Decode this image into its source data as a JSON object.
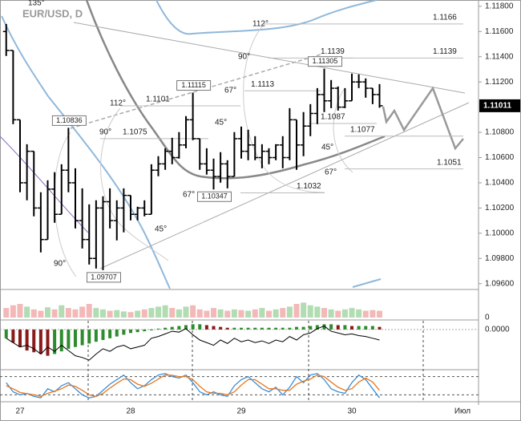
{
  "chart_data": [
    {
      "type": "ohlc",
      "title": "EUR/USD, D",
      "color": "#000000",
      "categories": [
        null,
        null,
        "27",
        null,
        null,
        null,
        null,
        null,
        null,
        null,
        null,
        null,
        null,
        null,
        null,
        null,
        null,
        null,
        "28",
        null,
        null,
        null,
        null,
        null,
        null,
        null,
        null,
        null,
        null,
        null,
        null,
        null,
        null,
        null,
        "29",
        null,
        null,
        null,
        null,
        null,
        null,
        null,
        null,
        null,
        null,
        null,
        null,
        null,
        null,
        null,
        "30",
        null,
        null,
        null,
        null,
        null,
        null,
        null,
        null,
        null,
        null,
        null,
        null,
        null,
        null,
        null,
        "Июл"
      ],
      "open": [
        1.116,
        1.1145,
        1.109,
        1.104,
        1.1065,
        1.102,
        1.0995,
        1.1035,
        1.1015,
        1.105,
        1.104,
        1.101,
        1.0995,
        1.098,
        1.102,
        1.1025,
        1.101,
        1.102,
        1.103,
        1.1015,
        1.102,
        1.1015,
        1.105,
        1.1055,
        1.1065,
        1.106,
        1.107,
        1.109,
        1.1075,
        1.1055,
        1.105,
        1.1045,
        1.1055,
        1.1045,
        1.1075,
        1.1065,
        1.107,
        1.106,
        1.1065,
        1.106,
        1.107,
        1.106,
        1.109,
        1.107,
        1.1085,
        1.1095,
        1.111,
        1.1105,
        1.1115,
        1.11,
        1.1105,
        1.112,
        1.112,
        1.1115,
        1.111,
        null,
        null,
        null,
        null,
        null,
        null,
        null,
        null,
        null,
        null,
        null,
        null
      ],
      "high": [
        1.1166,
        1.1145,
        1.109,
        1.10706,
        1.1065,
        1.10325,
        1.1042,
        1.10484,
        1.10547,
        1.10836,
        1.10515,
        1.10356,
        1.10229,
        1.10261,
        1.10293,
        1.10356,
        1.10261,
        1.10356,
        1.103,
        1.1021,
        1.10261,
        1.10547,
        1.10611,
        1.10674,
        1.10757,
        1.10802,
        1.10929,
        1.11115,
        1.1075,
        1.10674,
        1.10592,
        1.10643,
        1.10579,
        1.10802,
        1.10846,
        1.10821,
        1.1077,
        1.10706,
        1.10674,
        1.10706,
        1.1077,
        1.10992,
        1.109,
        1.10961,
        1.11024,
        1.11151,
        1.11305,
        1.11215,
        1.11164,
        1.11151,
        1.11266,
        1.1126,
        1.11228,
        1.11151,
        1.11183,
        null,
        null,
        null,
        null,
        null,
        null,
        null,
        null,
        null,
        null,
        null,
        null
      ],
      "low": [
        1.11406,
        1.10865,
        1.10325,
        1.10261,
        1.10134,
        1.09848,
        1.0995,
        1.10083,
        1.1015,
        1.10325,
        1.10038,
        1.09879,
        1.09752,
        1.0972,
        1.09707,
        1.10038,
        1.09943,
        1.10007,
        1.10102,
        1.10102,
        1.10134,
        1.1015,
        1.10452,
        1.10503,
        1.10547,
        1.10592,
        1.10674,
        1.10738,
        1.10503,
        1.10465,
        1.10347,
        1.10401,
        1.10356,
        1.1045,
        1.10592,
        1.10579,
        1.10579,
        1.10515,
        1.10547,
        1.10579,
        1.10515,
        1.10579,
        1.10503,
        1.10611,
        1.1077,
        1.10865,
        1.10961,
        1.10992,
        1.10973,
        1.10992,
        1.1105,
        1.11151,
        1.11075,
        1.11024,
        1.10995,
        null,
        null,
        null,
        null,
        null,
        null,
        null,
        null,
        null,
        null,
        null,
        null
      ],
      "close": [
        1.1145,
        1.109,
        1.104,
        1.1065,
        1.102,
        1.0995,
        1.1035,
        1.1015,
        1.105,
        1.104,
        1.101,
        1.0995,
        1.098,
        1.102,
        1.1025,
        1.101,
        1.102,
        1.103,
        1.1015,
        1.102,
        1.1015,
        1.105,
        1.1055,
        1.1065,
        1.106,
        1.107,
        1.109,
        1.1075,
        1.1055,
        1.105,
        1.1045,
        1.1055,
        1.1045,
        1.1075,
        1.1065,
        1.107,
        1.106,
        1.1065,
        1.106,
        1.107,
        1.106,
        1.109,
        1.107,
        1.1085,
        1.1095,
        1.111,
        1.1105,
        1.1115,
        1.11,
        1.1105,
        1.112,
        1.112,
        1.1115,
        1.111,
        1.11011,
        null,
        null,
        null,
        null,
        null,
        null,
        null,
        null,
        null,
        null,
        null,
        null
      ],
      "ylim": [
        1.0956,
        1.1185
      ],
      "yticks": [
        {
          "value": 1.096,
          "label": "1.09600"
        },
        {
          "value": 1.098,
          "label": "1.09800"
        },
        {
          "value": 1.1,
          "label": "1.10000"
        },
        {
          "value": 1.102,
          "label": "1.10200"
        },
        {
          "value": 1.104,
          "label": "1.10400"
        },
        {
          "value": 1.106,
          "label": "1.10600"
        },
        {
          "value": 1.108,
          "label": "1.10800"
        },
        {
          "value": 1.112,
          "label": "1.11200"
        },
        {
          "value": 1.114,
          "label": "1.11400"
        },
        {
          "value": 1.116,
          "label": "1.11600"
        },
        {
          "value": 1.118,
          "label": "1.11800"
        }
      ],
      "last": {
        "value": 1.11011,
        "label": "1.11011"
      },
      "levels": [
        {
          "value": 1.1166,
          "label": "1.1166"
        },
        {
          "value": 1.1139,
          "label": "1.1139"
        },
        {
          "value": 1.1139,
          "label": "1.1139"
        },
        {
          "value": 1.1113,
          "label": "1.1113"
        },
        {
          "value": 1.1101,
          "label": "1.1101"
        },
        {
          "value": 1.1087,
          "label": "1.1087"
        },
        {
          "value": 1.1075,
          "label": "1.1075"
        },
        {
          "value": 1.1077,
          "label": "1.1077"
        },
        {
          "value": 1.1051,
          "label": "1.1051"
        },
        {
          "value": 1.1032,
          "label": "1.1032"
        }
      ],
      "extremes": [
        {
          "value": 1.10836,
          "label": "1.10836"
        },
        {
          "value": 1.11115,
          "label": "1.11115"
        },
        {
          "value": 1.09707,
          "label": "1.09707"
        },
        {
          "value": 1.10347,
          "label": "1.10347"
        },
        {
          "value": 1.11305,
          "label": "1.11305"
        }
      ],
      "annotations": [
        "135°",
        "112°",
        "90°",
        "67°",
        "45°",
        "112°",
        "90°",
        "67°",
        "45°",
        "90°",
        "45°",
        "67°"
      ]
    },
    {
      "type": "bar",
      "up_color": "#9fd39f",
      "down_color": "#f0a8a8",
      "values": [
        14,
        18,
        20,
        16,
        12,
        10,
        15,
        12,
        18,
        14,
        12,
        16,
        20,
        14,
        12,
        10,
        11,
        9,
        8,
        10,
        12,
        14,
        16,
        18,
        14,
        12,
        16,
        18,
        12,
        10,
        14,
        12,
        10,
        12,
        11,
        10,
        12,
        14,
        10,
        12,
        14,
        16,
        20,
        22,
        18,
        16,
        14,
        12,
        10,
        12,
        14,
        12,
        10,
        11,
        10
      ],
      "ylim": [
        0,
        40
      ],
      "yticks": [
        0
      ]
    },
    {
      "type": "oscillator",
      "up_color": "#2e8b2e",
      "down_color": "#8b1a1a",
      "signal_color": "#000000",
      "values": [
        -0.001,
        -0.0015,
        -0.002,
        -0.0024,
        -0.0026,
        -0.0028,
        -0.003,
        -0.0028,
        -0.0025,
        -0.0022,
        -0.002,
        -0.0018,
        -0.0016,
        -0.0014,
        -0.0012,
        -0.001,
        -0.0008,
        -0.0006,
        -0.0004,
        -0.0003,
        -0.0002,
        -0.0001,
        0.0001,
        0.0002,
        0.0003,
        0.0004,
        0.0005,
        0.0006,
        0.0006,
        0.0005,
        0.0004,
        0.0003,
        0.0002,
        0.0002,
        0.0002,
        0.0002,
        0.0002,
        0.0002,
        0.0002,
        0.0002,
        0.0002,
        0.0002,
        0.0003,
        0.0003,
        0.0004,
        0.0005,
        0.0006,
        0.0006,
        0.0005,
        0.0005,
        0.0004,
        0.0004,
        0.0004,
        0.0004,
        0.0003
      ],
      "signal": [
        -0.001,
        -0.0015,
        -0.002,
        -0.0018,
        -0.0022,
        -0.0028,
        -0.002,
        -0.0025,
        -0.0018,
        -0.0024,
        -0.003,
        -0.0032,
        -0.0035,
        -0.0028,
        -0.0022,
        -0.0025,
        -0.002,
        -0.0018,
        -0.0022,
        -0.002,
        -0.0018,
        -0.001,
        -0.0008,
        -0.0005,
        -0.0002,
        -0.0003,
        0.0001,
        -0.0006,
        -0.0012,
        -0.0015,
        -0.0018,
        -0.0012,
        -0.0016,
        -0.001,
        -0.0014,
        -0.0012,
        -0.0015,
        -0.0013,
        -0.0016,
        -0.0012,
        -0.0014,
        -0.0008,
        -0.0012,
        -0.0006,
        -0.0004,
        0.0001,
        0.0004,
        -0.0002,
        -0.0004,
        -0.0006,
        -0.0005,
        -0.0007,
        -0.0008,
        -0.001,
        -0.0012
      ],
      "ylim": [
        -0.0045,
        0.001
      ],
      "yticks": [
        {
          "value": 0,
          "label": "0.0000"
        }
      ]
    },
    {
      "type": "line",
      "ylim": [
        0,
        100
      ],
      "levels": [
        20,
        80
      ],
      "series": [
        {
          "color": "#3a8fd9",
          "values": [
            60,
            30,
            20,
            25,
            15,
            10,
            40,
            30,
            50,
            60,
            40,
            20,
            10,
            15,
            35,
            55,
            70,
            85,
            60,
            40,
            50,
            70,
            85,
            90,
            80,
            75,
            85,
            60,
            30,
            20,
            30,
            20,
            15,
            50,
            70,
            80,
            60,
            40,
            30,
            45,
            20,
            45,
            80,
            60,
            85,
            90,
            70,
            40,
            30,
            25,
            60,
            85,
            70,
            40,
            10
          ]
        },
        {
          "color": "#e8781e",
          "values": [
            50,
            40,
            28,
            24,
            20,
            15,
            25,
            32,
            40,
            52,
            48,
            35,
            20,
            15,
            25,
            42,
            58,
            72,
            70,
            55,
            48,
            58,
            72,
            85,
            84,
            80,
            80,
            70,
            48,
            30,
            25,
            25,
            20,
            30,
            52,
            70,
            70,
            55,
            40,
            40,
            35,
            35,
            55,
            65,
            72,
            85,
            80,
            62,
            45,
            35,
            40,
            62,
            75,
            62,
            35
          ]
        }
      ]
    }
  ]
}
